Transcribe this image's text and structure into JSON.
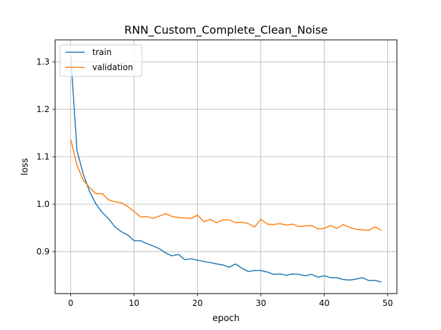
{
  "chart_data": {
    "type": "line",
    "title": "RNN_Custom_Complete_Clean_Noise",
    "xlabel": "epoch",
    "ylabel": "loss",
    "xlim": [
      -2.45,
      51.45
    ],
    "ylim": [
      0.8115,
      1.3465
    ],
    "xticks": [
      0,
      10,
      20,
      30,
      40,
      50
    ],
    "yticks": [
      0.9,
      1.0,
      1.1,
      1.2,
      1.3
    ],
    "ytick_labels": [
      "0.9",
      "1.0",
      "1.1",
      "1.2",
      "1.3"
    ],
    "grid": true,
    "legend_position": "top-left",
    "series": [
      {
        "name": "train",
        "color": "#1f77b4",
        "x": [
          0,
          1,
          2,
          3,
          4,
          5,
          6,
          7,
          8,
          9,
          10,
          11,
          12,
          13,
          14,
          15,
          16,
          17,
          18,
          19,
          20,
          21,
          22,
          23,
          24,
          25,
          26,
          27,
          28,
          29,
          30,
          31,
          32,
          33,
          34,
          35,
          36,
          37,
          38,
          39,
          40,
          41,
          42,
          43,
          44,
          45,
          46,
          47,
          48,
          49
        ],
        "values": [
          1.315,
          1.113,
          1.063,
          1.026,
          1.0,
          0.982,
          0.969,
          0.952,
          0.942,
          0.935,
          0.923,
          0.923,
          0.917,
          0.912,
          0.906,
          0.897,
          0.891,
          0.894,
          0.883,
          0.885,
          0.882,
          0.879,
          0.877,
          0.874,
          0.872,
          0.867,
          0.874,
          0.865,
          0.858,
          0.86,
          0.86,
          0.857,
          0.852,
          0.853,
          0.85,
          0.853,
          0.852,
          0.849,
          0.852,
          0.846,
          0.849,
          0.845,
          0.845,
          0.841,
          0.84,
          0.842,
          0.845,
          0.839,
          0.839,
          0.836
        ]
      },
      {
        "name": "validation",
        "color": "#ff7f0e",
        "x": [
          0,
          1,
          2,
          3,
          4,
          5,
          6,
          7,
          8,
          9,
          10,
          11,
          12,
          13,
          14,
          15,
          16,
          17,
          18,
          19,
          20,
          21,
          22,
          23,
          24,
          25,
          26,
          27,
          28,
          29,
          30,
          31,
          32,
          33,
          34,
          35,
          36,
          37,
          38,
          39,
          40,
          41,
          42,
          43,
          44,
          45,
          46,
          47,
          48,
          49
        ],
        "values": [
          1.137,
          1.082,
          1.05,
          1.035,
          1.022,
          1.022,
          1.009,
          1.005,
          1.003,
          0.995,
          0.985,
          0.973,
          0.974,
          0.97,
          0.975,
          0.98,
          0.974,
          0.972,
          0.971,
          0.97,
          0.977,
          0.963,
          0.968,
          0.961,
          0.967,
          0.967,
          0.961,
          0.962,
          0.959,
          0.952,
          0.968,
          0.958,
          0.957,
          0.959,
          0.956,
          0.958,
          0.953,
          0.954,
          0.955,
          0.948,
          0.949,
          0.955,
          0.949,
          0.957,
          0.951,
          0.947,
          0.946,
          0.945,
          0.952,
          0.945
        ]
      }
    ]
  }
}
